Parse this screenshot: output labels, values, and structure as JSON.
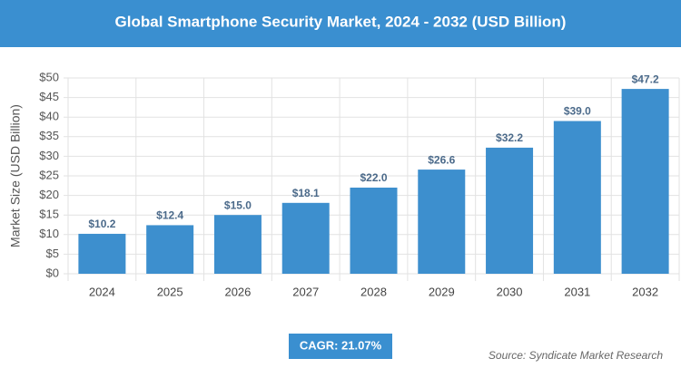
{
  "chart_data": {
    "type": "bar",
    "title": "Global Smartphone Security Market, 2024 - 2032 (USD Billion)",
    "y_label": "Market Size (USD Billion)",
    "categories": [
      "2024",
      "2025",
      "2026",
      "2027",
      "2028",
      "2029",
      "2030",
      "2031",
      "2032"
    ],
    "values": [
      10.2,
      12.4,
      15.0,
      18.1,
      22.0,
      26.6,
      32.2,
      39.0,
      47.2
    ],
    "value_labels": [
      "$10.2",
      "$12.4",
      "$15.0",
      "$18.1",
      "$22.0",
      "$26.6",
      "$32.2",
      "$39.0",
      "$47.2"
    ],
    "color": "#3d8fce",
    "ylim": [
      0,
      50
    ],
    "yticks": [
      {
        "value": 0,
        "label": "$0"
      },
      {
        "value": 5,
        "label": "$5"
      },
      {
        "value": 10,
        "label": "$10"
      },
      {
        "value": 15,
        "label": "$15"
      },
      {
        "value": 20,
        "label": "$20"
      },
      {
        "value": 25,
        "label": "$25"
      },
      {
        "value": 30,
        "label": "$30"
      },
      {
        "value": 35,
        "label": "$35"
      },
      {
        "value": 40,
        "label": "$40"
      },
      {
        "value": 45,
        "label": "$45"
      },
      {
        "value": 50,
        "label": "$50"
      }
    ],
    "grid": true,
    "cagr": "CAGR: 21.07%",
    "source": "Source: Syndicate Market Research"
  }
}
